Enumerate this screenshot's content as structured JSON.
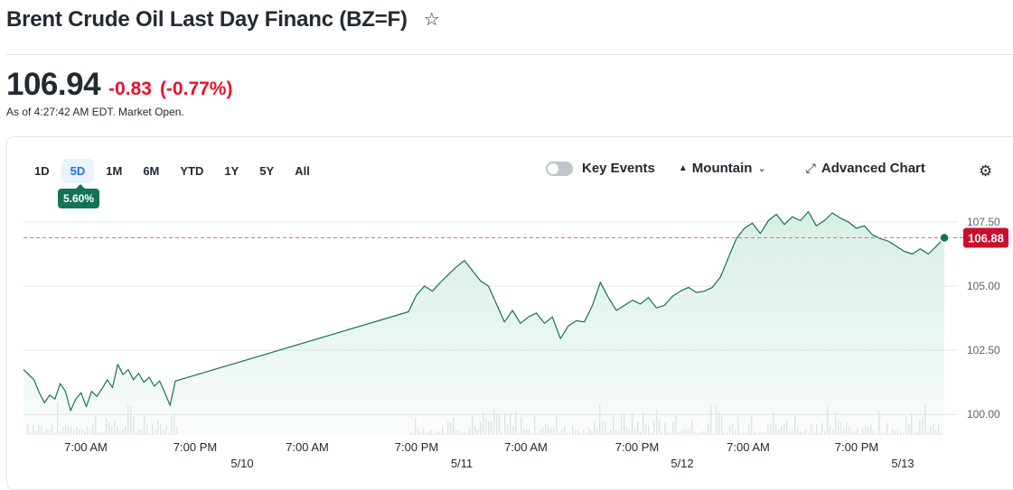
{
  "header": {
    "title": "Brent Crude Oil Last Day Financ (BZ=F)",
    "price": "106.94",
    "change": "-0.83",
    "change_pct": "(-0.77%)",
    "as_of": "As of 4:27:42 AM EDT. Market Open."
  },
  "toolbar": {
    "ranges": [
      "1D",
      "5D",
      "1M",
      "6M",
      "YTD",
      "1Y",
      "5Y",
      "All"
    ],
    "active_range": "5D",
    "range_change": "5.60%",
    "key_events_label": "Key Events",
    "chart_type_label": "Mountain",
    "advanced_label": "Advanced Chart"
  },
  "colors": {
    "line": "#137356",
    "fill": "#d5ede2",
    "negative": "#eb0f29",
    "grid": "#e0e4e9",
    "badge": "#137356",
    "last_price": "#c8102e"
  },
  "icons": {
    "star": "star-icon",
    "gear": "gear-icon",
    "mountain": "mountain-icon",
    "expand": "expand-icon",
    "chevron": "chevron-down-icon"
  },
  "chart_data": {
    "type": "area",
    "ylim": [
      99.2,
      108.2
    ],
    "y_ticks": [
      "100.00",
      "102.50",
      "105.00",
      "107.50"
    ],
    "y_tick_values": [
      100.0,
      102.5,
      105.0,
      107.5
    ],
    "x_time_labels": [
      "7:00 AM",
      "7:00 PM",
      "7:00 AM",
      "7:00 PM",
      "7:00 AM",
      "7:00 PM",
      "7:00 AM",
      "7:00 PM"
    ],
    "x_date_labels": [
      "5/10",
      "5/11",
      "5/12",
      "5/13"
    ],
    "last_price_label": "106.88",
    "last_price_value": 106.88,
    "grid": true,
    "series": [
      {
        "values": [
          101.75,
          101.55,
          101.35,
          100.85,
          100.45,
          100.75,
          100.6,
          101.2,
          100.9,
          100.15,
          100.6,
          100.85,
          100.3,
          100.9,
          100.7,
          101.0,
          101.35,
          101.05,
          101.95,
          101.55,
          101.75,
          101.35,
          101.6,
          101.25,
          101.45,
          101.1,
          101.3,
          100.85,
          100.35,
          101.3,
          104.0,
          104.65,
          105.0,
          104.8,
          105.15,
          105.45,
          105.75,
          106.0,
          105.6,
          105.2,
          105.0,
          104.3,
          103.6,
          104.05,
          103.55,
          103.8,
          103.95,
          103.55,
          103.8,
          102.95,
          103.45,
          103.65,
          103.6,
          104.25,
          105.15,
          104.55,
          104.05,
          104.25,
          104.45,
          104.3,
          104.55,
          104.15,
          104.25,
          104.6,
          104.8,
          104.95,
          104.75,
          104.8,
          104.95,
          105.35,
          106.1,
          106.85,
          107.25,
          107.45,
          107.05,
          107.55,
          107.8,
          107.4,
          107.7,
          107.55,
          107.9,
          107.35,
          107.55,
          107.85,
          107.65,
          107.5,
          107.25,
          107.35,
          107.0,
          106.85,
          106.75,
          106.55,
          106.35,
          106.25,
          106.45,
          106.25,
          106.55,
          106.88
        ]
      }
    ]
  }
}
